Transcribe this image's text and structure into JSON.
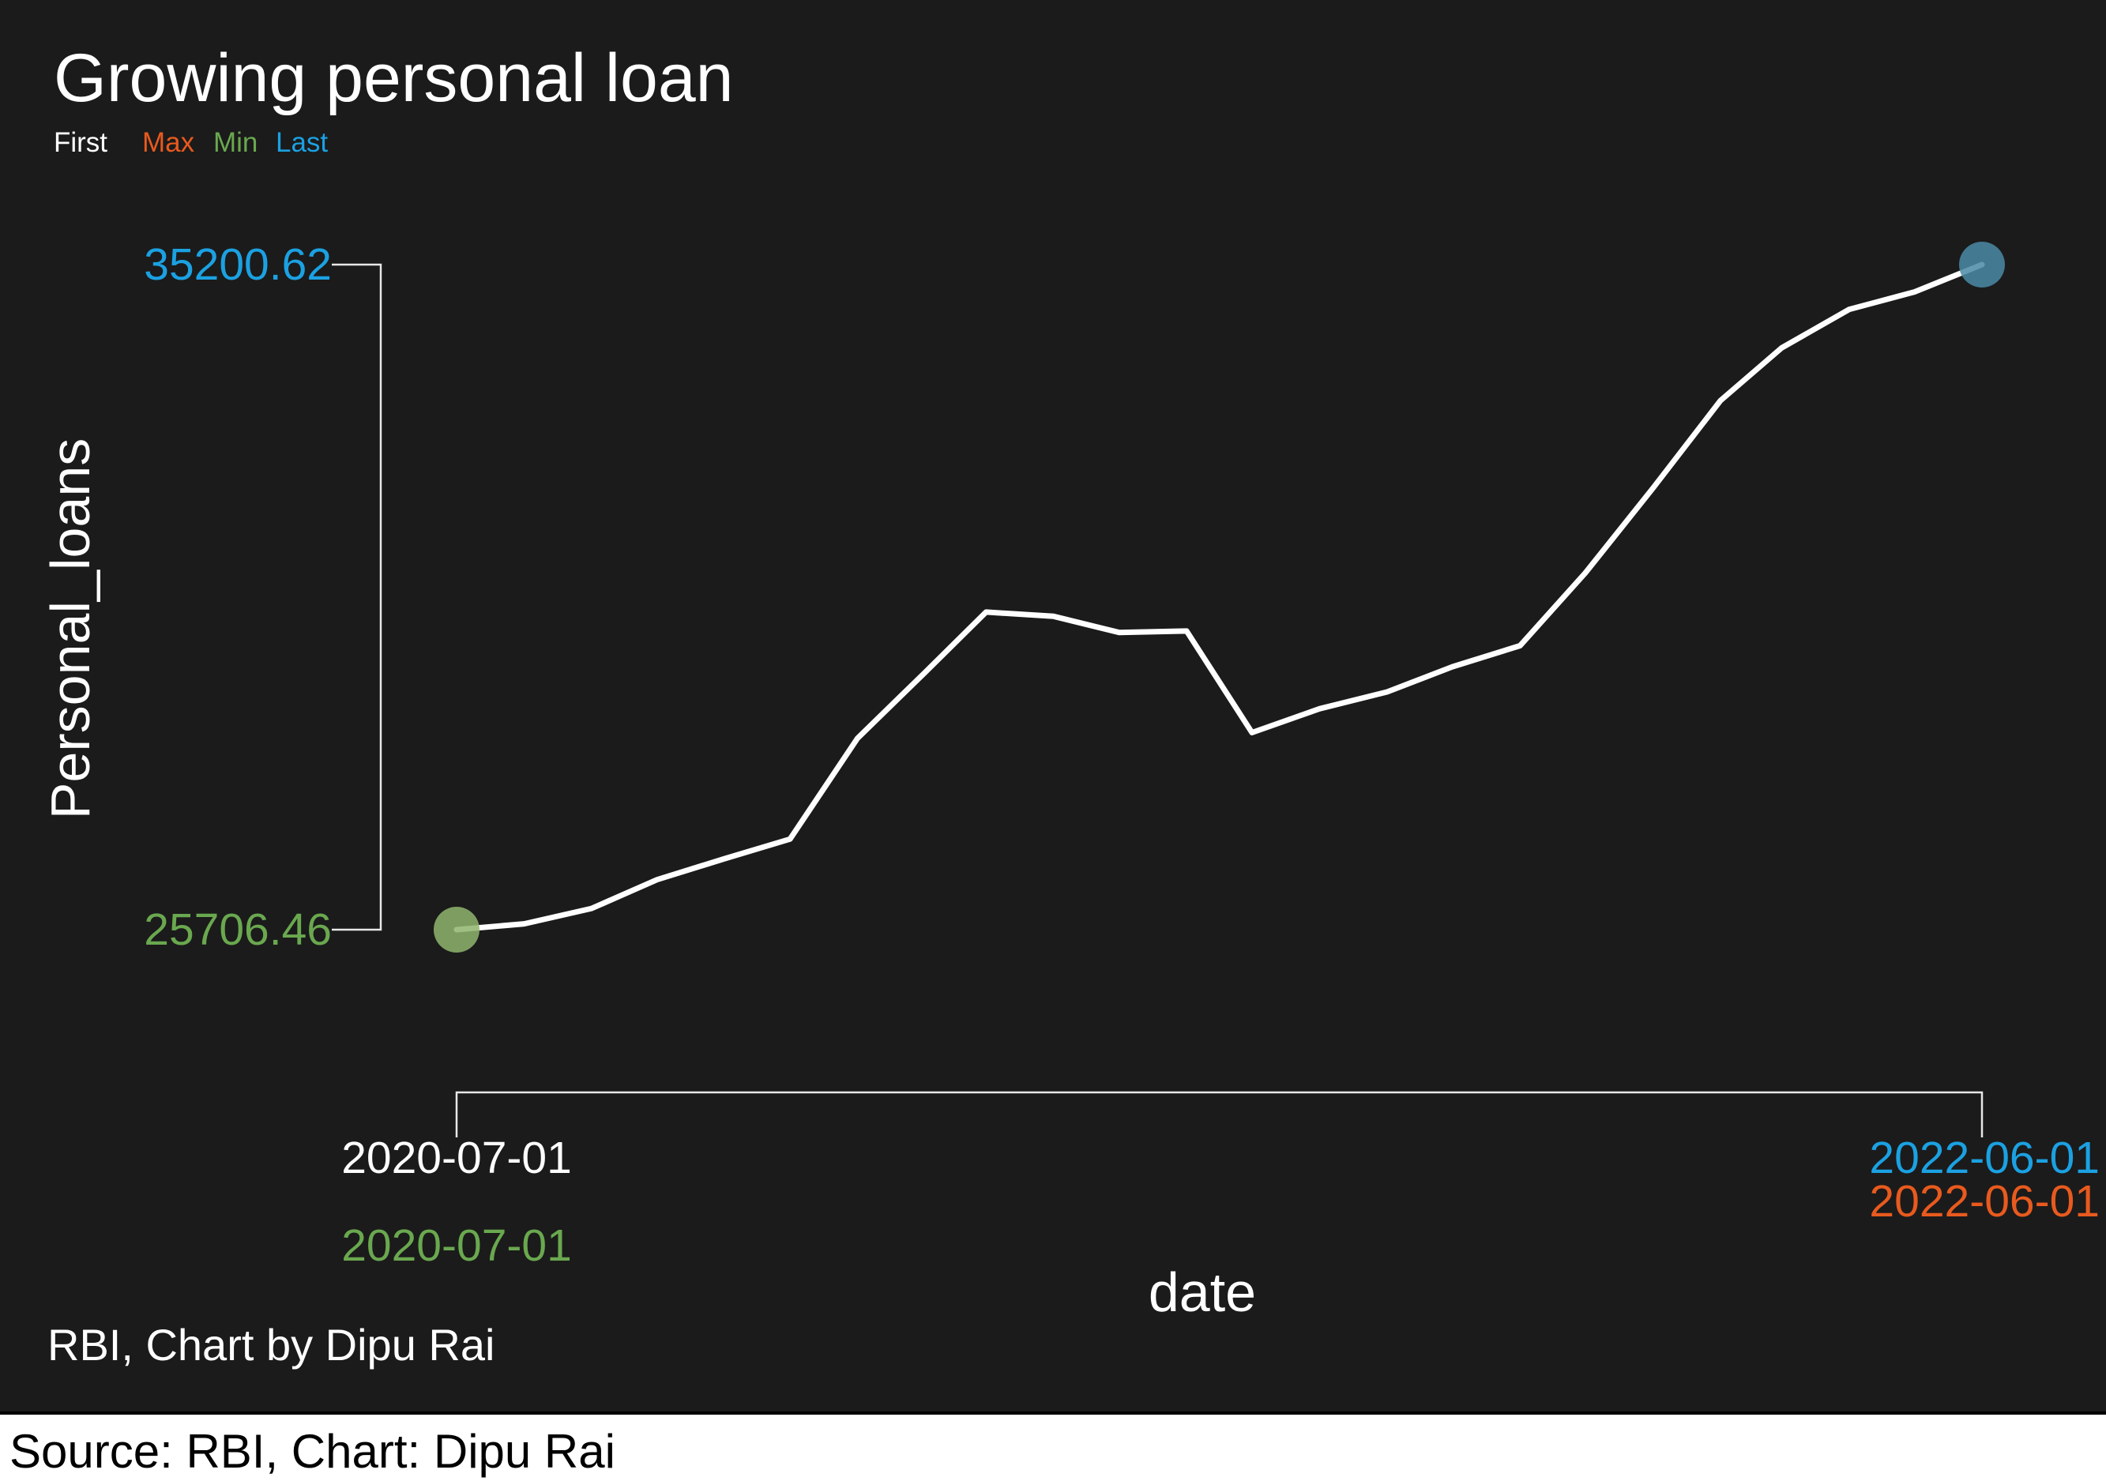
{
  "colors": {
    "background": "#1b1b1b",
    "line": "#ffffff",
    "first": "#ffffff",
    "max": "#e85a1e",
    "min": "#6aa84f",
    "last": "#1ba1e2",
    "min_point": "#8fb56d",
    "last_point": "#4a8aa6"
  },
  "legend": {
    "first": "First",
    "max": "Max",
    "min": "Min",
    "last": "Last"
  },
  "plot_caption": "RBI, Chart by Dipu Rai",
  "source_caption": "Source: RBI, Chart: Dipu Rai",
  "chart_data": {
    "type": "line",
    "title": "Growing personal loan",
    "xlabel": "date",
    "ylabel": "Personal_loans",
    "grid": false,
    "legend_position": "top-left",
    "ylim": [
      25706.46,
      35200.62
    ],
    "xlim": [
      "2020-07-01",
      "2022-06-01"
    ],
    "y_ticks": [
      {
        "label": "35200.62",
        "role": "last"
      },
      {
        "label": "25706.46",
        "role": "min"
      }
    ],
    "x_ticks": [
      {
        "label": "2020-07-01",
        "role": "first"
      },
      {
        "label": "2020-07-01",
        "role": "min"
      },
      {
        "label": "2022-06-01",
        "role": "last"
      },
      {
        "label": "2022-06-01",
        "role": "max"
      }
    ],
    "series": [
      {
        "x": [
          "2020-07-01",
          "2020-08-01",
          "2020-09-01",
          "2020-10-01",
          "2020-11-01",
          "2020-12-01",
          "2021-01-01",
          "2021-02-01",
          "2021-03-01",
          "2021-04-01",
          "2021-05-01",
          "2021-06-01",
          "2021-07-01",
          "2021-08-01",
          "2021-09-01",
          "2021-10-01",
          "2021-11-01",
          "2021-12-01",
          "2022-01-01",
          "2022-02-01",
          "2022-03-01",
          "2022-04-01",
          "2022-05-01",
          "2022-06-01"
        ],
        "values": [
          25706.46,
          25790,
          26010,
          26420,
          26720,
          27000,
          28440,
          29380,
          30240,
          30180,
          29950,
          29970,
          28520,
          28860,
          29100,
          29460,
          29760,
          30800,
          32010,
          33260,
          34010,
          34560,
          34810,
          35200.62
        ]
      }
    ],
    "highlights": {
      "first": {
        "x": "2020-07-01",
        "y": 25706.46
      },
      "min": {
        "x": "2020-07-01",
        "y": 25706.46
      },
      "max": {
        "x": "2022-06-01",
        "y": 35200.62
      },
      "last": {
        "x": "2022-06-01",
        "y": 35200.62
      }
    }
  }
}
